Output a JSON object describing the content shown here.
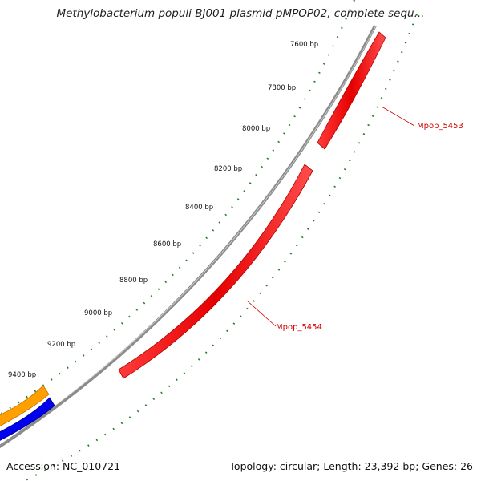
{
  "title": "Methylobacterium populi BJ001 plasmid pMPOP02, complete sequ...",
  "footer": {
    "accession": "Accession: NC_010721",
    "summary": "Topology: circular; Length: 23,392 bp; Genes: 26"
  },
  "ruler_labels": [
    "7600 bp",
    "7800 bp",
    "8000 bp",
    "8200 bp",
    "8400 bp",
    "8600 bp",
    "8800 bp",
    "9000 bp",
    "9200 bp",
    "9400 bp"
  ],
  "genes": [
    {
      "name": "Mpop_5453",
      "color": "#ff0000"
    },
    {
      "name": "Mpop_5454",
      "color": "#ff0000"
    },
    {
      "name": "",
      "color": "#ffa500"
    },
    {
      "name": "",
      "color": "#0000ff"
    }
  ],
  "colors": {
    "backbone": "#8c8c8c",
    "ruler_dots": "#1e7a1e",
    "gene_label": "#d40000"
  }
}
